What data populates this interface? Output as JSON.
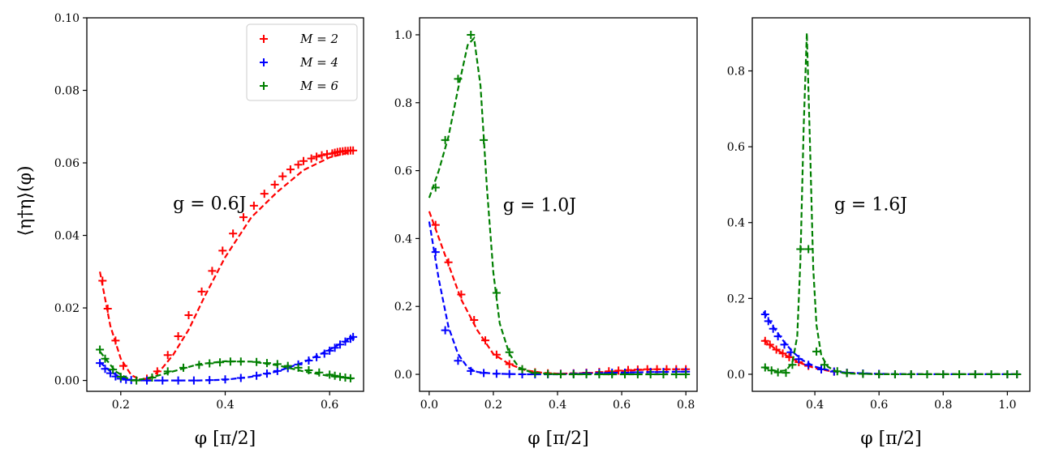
{
  "figure": {
    "ylabel": "⟨η†η⟩(φ)",
    "legend_location": "upper right of first panel"
  },
  "chart_data": [
    {
      "type": "line",
      "annotation": "g = 0.6J",
      "xlabel": "φ [π/2]",
      "ylabel": "⟨η†η⟩(φ)",
      "xlim": [
        0.135,
        0.665
      ],
      "ylim": [
        -0.003,
        0.1
      ],
      "xticks": [
        0.2,
        0.4,
        0.6
      ],
      "xtick_labels": [
        "0.2",
        "0.4",
        "0.6"
      ],
      "yticks": [
        0.0,
        0.02,
        0.04,
        0.06,
        0.08,
        0.1
      ],
      "ytick_labels": [
        "0.00",
        "0.02",
        "0.04",
        "0.06",
        "0.08",
        "0.10"
      ],
      "legend": [
        "M = 2",
        "M = 4",
        "M = 6"
      ],
      "series": [
        {
          "name": "M = 2",
          "color": "#ff0000",
          "line_x": [
            0.16,
            0.18,
            0.2,
            0.22,
            0.24,
            0.26,
            0.28,
            0.3,
            0.33,
            0.36,
            0.4,
            0.45,
            0.5,
            0.55,
            0.6,
            0.64
          ],
          "line_y": [
            0.03,
            0.015,
            0.006,
            0.0015,
            0.0,
            0.001,
            0.0035,
            0.007,
            0.014,
            0.023,
            0.034,
            0.045,
            0.052,
            0.058,
            0.0615,
            0.063
          ],
          "markers_x": [
            0.165,
            0.175,
            0.19,
            0.205,
            0.25,
            0.27,
            0.29,
            0.31,
            0.33,
            0.355,
            0.375,
            0.395,
            0.415,
            0.435,
            0.455,
            0.475,
            0.495,
            0.51,
            0.525,
            0.54,
            0.55,
            0.565,
            0.575,
            0.585,
            0.595,
            0.605,
            0.61,
            0.615,
            0.62,
            0.625,
            0.63,
            0.635,
            0.64,
            0.645
          ],
          "markers_y": [
            0.0275,
            0.0198,
            0.011,
            0.004,
            0.0005,
            0.0025,
            0.007,
            0.0122,
            0.018,
            0.0245,
            0.0302,
            0.0358,
            0.0405,
            0.045,
            0.0482,
            0.0515,
            0.054,
            0.0563,
            0.0582,
            0.0595,
            0.0605,
            0.0612,
            0.0617,
            0.0621,
            0.0624,
            0.0626,
            0.0628,
            0.063,
            0.0631,
            0.0632,
            0.0633,
            0.0633,
            0.0634,
            0.0634
          ]
        },
        {
          "name": "M = 4",
          "color": "#0000ff",
          "line_x": [
            0.16,
            0.18,
            0.2,
            0.22,
            0.25,
            0.3,
            0.35,
            0.4,
            0.45,
            0.5,
            0.55,
            0.6,
            0.645
          ],
          "line_y": [
            0.005,
            0.0025,
            0.0008,
            0.0001,
            0.0,
            0.0,
            0.0,
            0.0002,
            0.001,
            0.0025,
            0.005,
            0.0085,
            0.012
          ],
          "markers_x": [
            0.16,
            0.17,
            0.18,
            0.19,
            0.2,
            0.21,
            0.22,
            0.25,
            0.28,
            0.31,
            0.34,
            0.37,
            0.4,
            0.43,
            0.46,
            0.48,
            0.5,
            0.52,
            0.54,
            0.56,
            0.575,
            0.59,
            0.6,
            0.61,
            0.62,
            0.63,
            0.64,
            0.645
          ],
          "markers_y": [
            0.0048,
            0.0032,
            0.002,
            0.0011,
            0.0005,
            0.0002,
            0.0001,
            0.0,
            0.0,
            0.0,
            0.0,
            0.0001,
            0.0003,
            0.0007,
            0.0013,
            0.0019,
            0.0026,
            0.0034,
            0.0044,
            0.0055,
            0.0064,
            0.0074,
            0.0082,
            0.009,
            0.0099,
            0.0107,
            0.0115,
            0.012
          ]
        },
        {
          "name": "M = 6",
          "color": "#007f00",
          "line_x": [
            0.16,
            0.19,
            0.22,
            0.25,
            0.3,
            0.35,
            0.4,
            0.45,
            0.5,
            0.55,
            0.6,
            0.645
          ],
          "line_y": [
            0.008,
            0.0025,
            0.0,
            0.0005,
            0.0025,
            0.0045,
            0.0053,
            0.0052,
            0.0042,
            0.0025,
            0.0012,
            0.0005
          ],
          "markers_x": [
            0.16,
            0.17,
            0.185,
            0.2,
            0.23,
            0.26,
            0.29,
            0.32,
            0.35,
            0.37,
            0.39,
            0.41,
            0.43,
            0.46,
            0.48,
            0.5,
            0.52,
            0.54,
            0.56,
            0.58,
            0.6,
            0.61,
            0.62,
            0.63,
            0.64
          ],
          "markers_y": [
            0.0085,
            0.006,
            0.003,
            0.001,
            0.0,
            0.0008,
            0.0025,
            0.0035,
            0.0043,
            0.0047,
            0.005,
            0.0052,
            0.0052,
            0.0051,
            0.0048,
            0.0045,
            0.004,
            0.0035,
            0.0028,
            0.0022,
            0.0016,
            0.0013,
            0.001,
            0.0008,
            0.0006
          ]
        }
      ]
    },
    {
      "type": "line",
      "annotation": "g = 1.0J",
      "xlabel": "φ [π/2]",
      "xlim": [
        -0.03,
        0.835
      ],
      "ylim": [
        -0.05,
        1.05
      ],
      "xticks": [
        0.0,
        0.2,
        0.4,
        0.6,
        0.8
      ],
      "xtick_labels": [
        "0.0",
        "0.2",
        "0.4",
        "0.6",
        "0.8"
      ],
      "yticks": [
        0.0,
        0.2,
        0.4,
        0.6,
        0.8,
        1.0
      ],
      "ytick_labels": [
        "0.0",
        "0.2",
        "0.4",
        "0.6",
        "0.8",
        "1.0"
      ],
      "series": [
        {
          "name": "M = 2",
          "color": "#ff0000",
          "line_x": [
            0.0,
            0.05,
            0.1,
            0.15,
            0.2,
            0.25,
            0.3,
            0.35,
            0.4,
            0.5,
            0.6,
            0.7,
            0.8
          ],
          "line_y": [
            0.48,
            0.35,
            0.22,
            0.13,
            0.06,
            0.03,
            0.012,
            0.005,
            0.002,
            0.004,
            0.01,
            0.015,
            0.015
          ],
          "markers_x": [
            0.02,
            0.06,
            0.1,
            0.14,
            0.175,
            0.21,
            0.25,
            0.29,
            0.33,
            0.37,
            0.41,
            0.45,
            0.49,
            0.53,
            0.56,
            0.59,
            0.62,
            0.65,
            0.68,
            0.71,
            0.74,
            0.77,
            0.8
          ],
          "markers_y": [
            0.44,
            0.33,
            0.235,
            0.16,
            0.1,
            0.058,
            0.03,
            0.015,
            0.006,
            0.003,
            0.002,
            0.003,
            0.005,
            0.007,
            0.009,
            0.011,
            0.013,
            0.014,
            0.015,
            0.015,
            0.015,
            0.015,
            0.015
          ]
        },
        {
          "name": "M = 4",
          "color": "#0000ff",
          "line_x": [
            0.0,
            0.03,
            0.06,
            0.09,
            0.12,
            0.15,
            0.2,
            0.3,
            0.4,
            0.6,
            0.8
          ],
          "line_y": [
            0.45,
            0.28,
            0.14,
            0.06,
            0.02,
            0.007,
            0.002,
            0.0,
            0.0,
            0.005,
            0.008
          ],
          "markers_x": [
            0.02,
            0.05,
            0.09,
            0.13,
            0.17,
            0.21,
            0.25,
            0.29,
            0.33,
            0.37,
            0.41,
            0.45,
            0.49,
            0.53,
            0.57,
            0.61,
            0.65,
            0.69,
            0.73,
            0.77,
            0.8
          ],
          "markers_y": [
            0.36,
            0.13,
            0.04,
            0.01,
            0.004,
            0.002,
            0.001,
            0.0,
            0.0,
            0.0,
            0.001,
            0.002,
            0.003,
            0.004,
            0.005,
            0.005,
            0.006,
            0.007,
            0.007,
            0.008,
            0.008
          ]
        },
        {
          "name": "M = 6",
          "color": "#007f00",
          "line_x": [
            0.0,
            0.03,
            0.06,
            0.09,
            0.12,
            0.14,
            0.16,
            0.18,
            0.2,
            0.22,
            0.25,
            0.28,
            0.32,
            0.4,
            0.6,
            0.8
          ],
          "line_y": [
            0.52,
            0.6,
            0.7,
            0.84,
            0.97,
            0.99,
            0.85,
            0.55,
            0.3,
            0.15,
            0.06,
            0.02,
            0.005,
            0.0,
            0.0,
            0.0
          ],
          "markers_x": [
            0.02,
            0.05,
            0.09,
            0.13,
            0.17,
            0.21,
            0.25,
            0.29,
            0.33,
            0.37,
            0.41,
            0.45,
            0.49,
            0.53,
            0.57,
            0.61,
            0.65,
            0.69,
            0.73,
            0.77,
            0.8
          ],
          "markers_y": [
            0.55,
            0.69,
            0.87,
            1.0,
            0.69,
            0.24,
            0.065,
            0.015,
            0.004,
            0.001,
            0.0,
            0.0,
            0.0,
            0.0,
            0.0,
            0.0,
            0.0,
            0.0,
            0.0,
            0.0,
            0.0
          ]
        }
      ]
    },
    {
      "type": "line",
      "annotation": "g = 1.6J",
      "xlabel": "φ [π/2]",
      "xlim": [
        0.205,
        1.07
      ],
      "ylim": [
        -0.045,
        0.94
      ],
      "xticks": [
        0.4,
        0.6,
        0.8,
        1.0
      ],
      "xtick_labels": [
        "0.4",
        "0.6",
        "0.8",
        "1.0"
      ],
      "yticks": [
        0.0,
        0.2,
        0.4,
        0.6,
        0.8
      ],
      "ytick_labels": [
        "0.0",
        "0.2",
        "0.4",
        "0.6",
        "0.8"
      ],
      "series": [
        {
          "name": "M = 2",
          "color": "#ff0000",
          "line_x": [
            0.24,
            0.28,
            0.32,
            0.36,
            0.4,
            0.45,
            0.5,
            0.6,
            0.8,
            1.0,
            1.04
          ],
          "line_y": [
            0.09,
            0.065,
            0.045,
            0.028,
            0.016,
            0.008,
            0.004,
            0.001,
            0.0,
            0.0,
            0.0
          ],
          "markers_x": [
            0.245,
            0.26,
            0.28,
            0.3,
            0.32,
            0.35,
            0.38,
            0.42,
            0.46,
            0.5,
            0.55,
            0.6,
            0.65,
            0.7,
            0.75,
            0.8,
            0.85,
            0.9,
            0.95,
            1.0,
            1.03
          ],
          "markers_y": [
            0.088,
            0.078,
            0.065,
            0.055,
            0.045,
            0.032,
            0.022,
            0.013,
            0.007,
            0.004,
            0.002,
            0.001,
            0.0,
            0.0,
            0.0,
            0.0,
            0.0,
            0.0,
            0.0,
            0.0,
            0.0
          ]
        },
        {
          "name": "M = 4",
          "color": "#0000ff",
          "line_x": [
            0.24,
            0.27,
            0.3,
            0.33,
            0.36,
            0.4,
            0.45,
            0.5,
            0.6,
            0.8,
            1.0,
            1.04
          ],
          "line_y": [
            0.165,
            0.125,
            0.09,
            0.06,
            0.038,
            0.02,
            0.009,
            0.004,
            0.001,
            0.0,
            0.0,
            0.0
          ],
          "markers_x": [
            0.245,
            0.255,
            0.27,
            0.285,
            0.305,
            0.325,
            0.35,
            0.38,
            0.42,
            0.46,
            0.5,
            0.55,
            0.6,
            0.65,
            0.7,
            0.75,
            0.8,
            0.85,
            0.9,
            0.95,
            1.0,
            1.03
          ],
          "markers_y": [
            0.158,
            0.14,
            0.12,
            0.1,
            0.078,
            0.058,
            0.04,
            0.025,
            0.013,
            0.007,
            0.004,
            0.002,
            0.001,
            0.0,
            0.0,
            0.0,
            0.0,
            0.0,
            0.0,
            0.0,
            0.0,
            0.0
          ]
        },
        {
          "name": "M = 6",
          "color": "#007f00",
          "line_x": [
            0.24,
            0.28,
            0.31,
            0.33,
            0.345,
            0.355,
            0.365,
            0.375,
            0.385,
            0.395,
            0.405,
            0.42,
            0.44,
            0.47,
            0.5,
            0.6,
            0.8,
            1.0,
            1.04
          ],
          "line_y": [
            0.018,
            0.008,
            0.01,
            0.03,
            0.1,
            0.3,
            0.65,
            0.9,
            0.6,
            0.28,
            0.13,
            0.05,
            0.02,
            0.006,
            0.002,
            0.0,
            0.0,
            0.0,
            0.0
          ],
          "markers_x": [
            0.245,
            0.265,
            0.285,
            0.31,
            0.33,
            0.355,
            0.38,
            0.405,
            0.43,
            0.47,
            0.5,
            0.55,
            0.6,
            0.65,
            0.7,
            0.75,
            0.8,
            0.85,
            0.9,
            0.95,
            1.0,
            1.03
          ],
          "markers_y": [
            0.018,
            0.01,
            0.005,
            0.004,
            0.025,
            0.33,
            0.33,
            0.06,
            0.025,
            0.008,
            0.003,
            0.001,
            0.0,
            0.0,
            0.0,
            0.0,
            0.0,
            0.0,
            0.0,
            0.0,
            0.0,
            0.0
          ]
        }
      ]
    }
  ]
}
